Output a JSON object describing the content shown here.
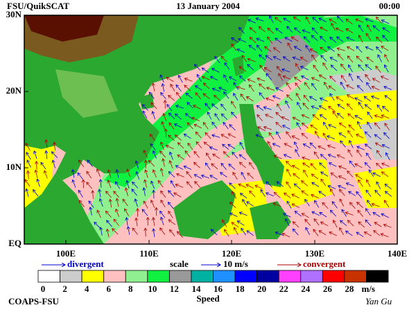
{
  "header": {
    "left": "FSU/QuikSCAT",
    "center": "13 January 2004",
    "right": "00:00"
  },
  "map": {
    "lat_labels": [
      "30N",
      "20N",
      "10N",
      "EQ"
    ],
    "lon_labels": [
      "100E",
      "110E",
      "120E",
      "130E",
      "140E"
    ]
  },
  "legend": {
    "divergent": "divergent",
    "scale": "scale",
    "scale_value": "10 m/s",
    "convergent": "convergent"
  },
  "colorbar": {
    "ticks": [
      0,
      2,
      4,
      6,
      8,
      10,
      12,
      14,
      16,
      18,
      20,
      22,
      24,
      26,
      28
    ],
    "unit": "m/s",
    "title": "Speed"
  },
  "footer": {
    "left": "COAPS-FSU",
    "right": "Yan Gu"
  }
}
